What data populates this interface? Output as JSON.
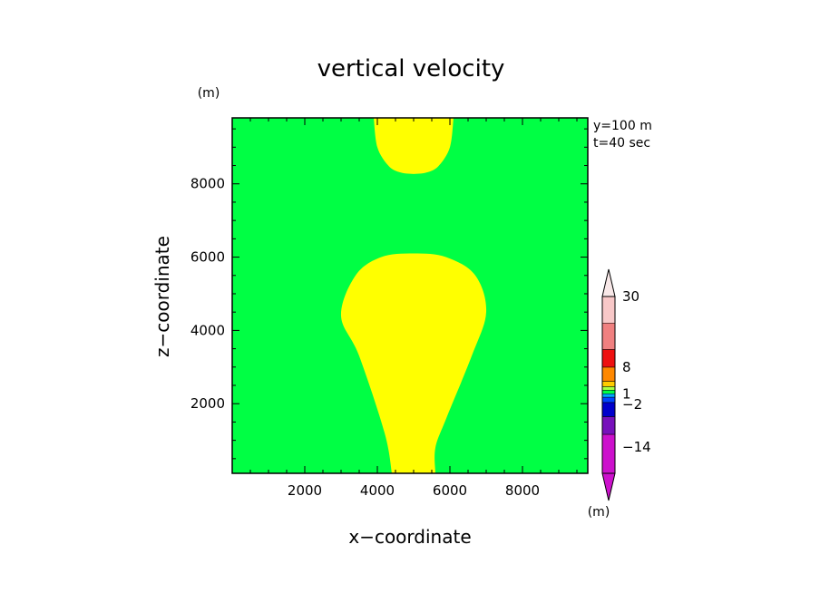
{
  "chart_data": {
    "type": "heatmap",
    "title": "vertical velocity",
    "xlabel": "x−coordinate",
    "ylabel": "z−coordinate",
    "xunit": "(m)",
    "yunit": "(m)",
    "annotations": [
      "y=100 m",
      "t=40 sec"
    ],
    "xlim": [
      0,
      9800
    ],
    "ylim": [
      100,
      9800
    ],
    "xticks": [
      2000,
      4000,
      6000,
      8000
    ],
    "yticks": [
      2000,
      4000,
      6000,
      8000
    ],
    "field_color": "#00ff44",
    "region_color": "#ffff00",
    "regions": [
      {
        "outline": [
          [
            3900,
            9800
          ],
          [
            4000,
            9000
          ],
          [
            4300,
            8500
          ],
          [
            4600,
            8320
          ],
          [
            5000,
            8270
          ],
          [
            5400,
            8320
          ],
          [
            5700,
            8500
          ],
          [
            6000,
            9000
          ],
          [
            6100,
            9800
          ]
        ]
      },
      {
        "outline": [
          [
            4400,
            100
          ],
          [
            4200,
            1200
          ],
          [
            3500,
            3300
          ],
          [
            3000,
            4400
          ],
          [
            3400,
            5500
          ],
          [
            4100,
            6000
          ],
          [
            5000,
            6100
          ],
          [
            5900,
            6000
          ],
          [
            6700,
            5500
          ],
          [
            7000,
            4500
          ],
          [
            6600,
            3300
          ],
          [
            5900,
            1600
          ],
          [
            5600,
            800
          ],
          [
            5600,
            100
          ]
        ]
      }
    ],
    "colorbar": {
      "unit": "(m)",
      "tick_labels": [
        {
          "label": "30",
          "at": 0.0
        },
        {
          "label": "8",
          "at": 0.4
        },
        {
          "label": "1",
          "at": 0.55
        },
        {
          "label": "−2",
          "at": 0.61
        },
        {
          "label": "−14",
          "at": 0.85
        }
      ],
      "bands": [
        {
          "color": "#f8c8c8",
          "frac": 0.15
        },
        {
          "color": "#f08080",
          "frac": 0.15
        },
        {
          "color": "#ee1111",
          "frac": 0.1
        },
        {
          "color": "#ff8800",
          "frac": 0.08
        },
        {
          "color": "#ffcc00",
          "frac": 0.03
        },
        {
          "color": "#aaff44",
          "frac": 0.02
        },
        {
          "color": "#00ff44",
          "frac": 0.02
        },
        {
          "color": "#00aaff",
          "frac": 0.02
        },
        {
          "color": "#0044ff",
          "frac": 0.03
        },
        {
          "color": "#0000cc",
          "frac": 0.08
        },
        {
          "color": "#7711bb",
          "frac": 0.1
        },
        {
          "color": "#cc11cc",
          "frac": 0.22
        }
      ],
      "top_arrow_color": "#f8e8e8",
      "bottom_arrow_color": "#cc11cc"
    }
  }
}
